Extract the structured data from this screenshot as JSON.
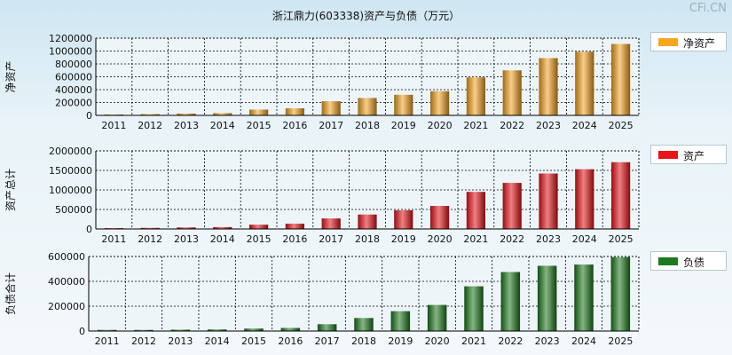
{
  "title": "浙江鼎力(603338)资产与负债（万元）",
  "watermark": "CFi.CN",
  "chart_data": [
    {
      "type": "bar",
      "ylabel": "净资产",
      "legend": "净资产",
      "color": "#f5a623",
      "categories": [
        "2011",
        "2012",
        "2013",
        "2014",
        "2015",
        "2016",
        "2017",
        "2018",
        "2019",
        "2020",
        "2021",
        "2022",
        "2023",
        "2024",
        "2025"
      ],
      "values": [
        14000,
        20000,
        28000,
        35000,
        90000,
        110000,
        220000,
        270000,
        320000,
        375000,
        590000,
        700000,
        890000,
        990000,
        1110000
      ],
      "ylim": [
        0,
        1200000
      ],
      "yticks": [
        "0",
        "200000",
        "400000",
        "600000",
        "800000",
        "1000000",
        "1200000"
      ],
      "grid": true,
      "legend_position": "right"
    },
    {
      "type": "bar",
      "ylabel": "资产总计",
      "legend": "资产",
      "color": "#e8141a",
      "categories": [
        "2011",
        "2012",
        "2013",
        "2014",
        "2015",
        "2016",
        "2017",
        "2018",
        "2019",
        "2020",
        "2021",
        "2022",
        "2023",
        "2024",
        "2025"
      ],
      "values": [
        22000,
        28000,
        40000,
        48000,
        110000,
        135000,
        270000,
        370000,
        480000,
        590000,
        950000,
        1180000,
        1420000,
        1530000,
        1710000
      ],
      "ylim": [
        0,
        2000000
      ],
      "yticks": [
        "0",
        "500000",
        "1000000",
        "1500000",
        "2000000"
      ],
      "grid": true,
      "legend_position": "right"
    },
    {
      "type": "bar",
      "ylabel": "负债合计",
      "legend": "负债",
      "color": "#1e7a1e",
      "categories": [
        "2011",
        "2012",
        "2013",
        "2014",
        "2015",
        "2016",
        "2017",
        "2018",
        "2019",
        "2020",
        "2021",
        "2022",
        "2023",
        "2024",
        "2025"
      ],
      "values": [
        9000,
        9000,
        11000,
        13000,
        20000,
        25000,
        55000,
        105000,
        160000,
        210000,
        360000,
        475000,
        525000,
        535000,
        595000
      ],
      "ylim": [
        0,
        600000
      ],
      "yticks": [
        "0",
        "200000",
        "400000",
        "600000"
      ],
      "grid": true,
      "legend_position": "right"
    }
  ]
}
